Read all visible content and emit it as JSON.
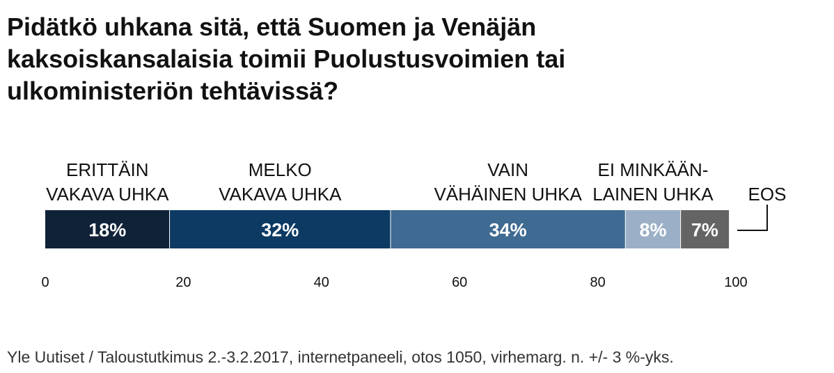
{
  "chart_data": {
    "type": "bar",
    "orientation": "horizontal-stacked",
    "title": "Pidätkö uhkana sitä, että Suomen ja Venäjän kaksoiskansalaisia toimii Puolustusvoimien tai ulkoministeriön tehtävissä?",
    "segments": [
      {
        "label_lines": [
          "ERITTÄIN",
          "VAKAVA UHKA"
        ],
        "value": 18,
        "value_label": "18%",
        "color": "#0f2238"
      },
      {
        "label_lines": [
          "MELKO",
          "VAKAVA UHKA"
        ],
        "value": 32,
        "value_label": "32%",
        "color": "#0c3a63"
      },
      {
        "label_lines": [
          "VAIN",
          "VÄHÄINEN UHKA"
        ],
        "value": 34,
        "value_label": "34%",
        "color": "#3f6a91"
      },
      {
        "label_lines": [
          "EI MINKÄÄN-",
          "LAINEN UHKA"
        ],
        "value": 8,
        "value_label": "8%",
        "color": "#9bb0c6"
      },
      {
        "label_lines": [
          "EOS"
        ],
        "value": 7,
        "value_label": "7%",
        "color": "#646464"
      }
    ],
    "xlim": [
      0,
      100
    ],
    "x_ticks": [
      "0",
      "20",
      "40",
      "60",
      "80",
      "100"
    ],
    "grid": false
  },
  "source": "Yle Uutiset / Taloustutkimus 2.-3.2.2017, internetpaneeli, otos 1050, virhemarg. n. +/- 3 %-yks."
}
